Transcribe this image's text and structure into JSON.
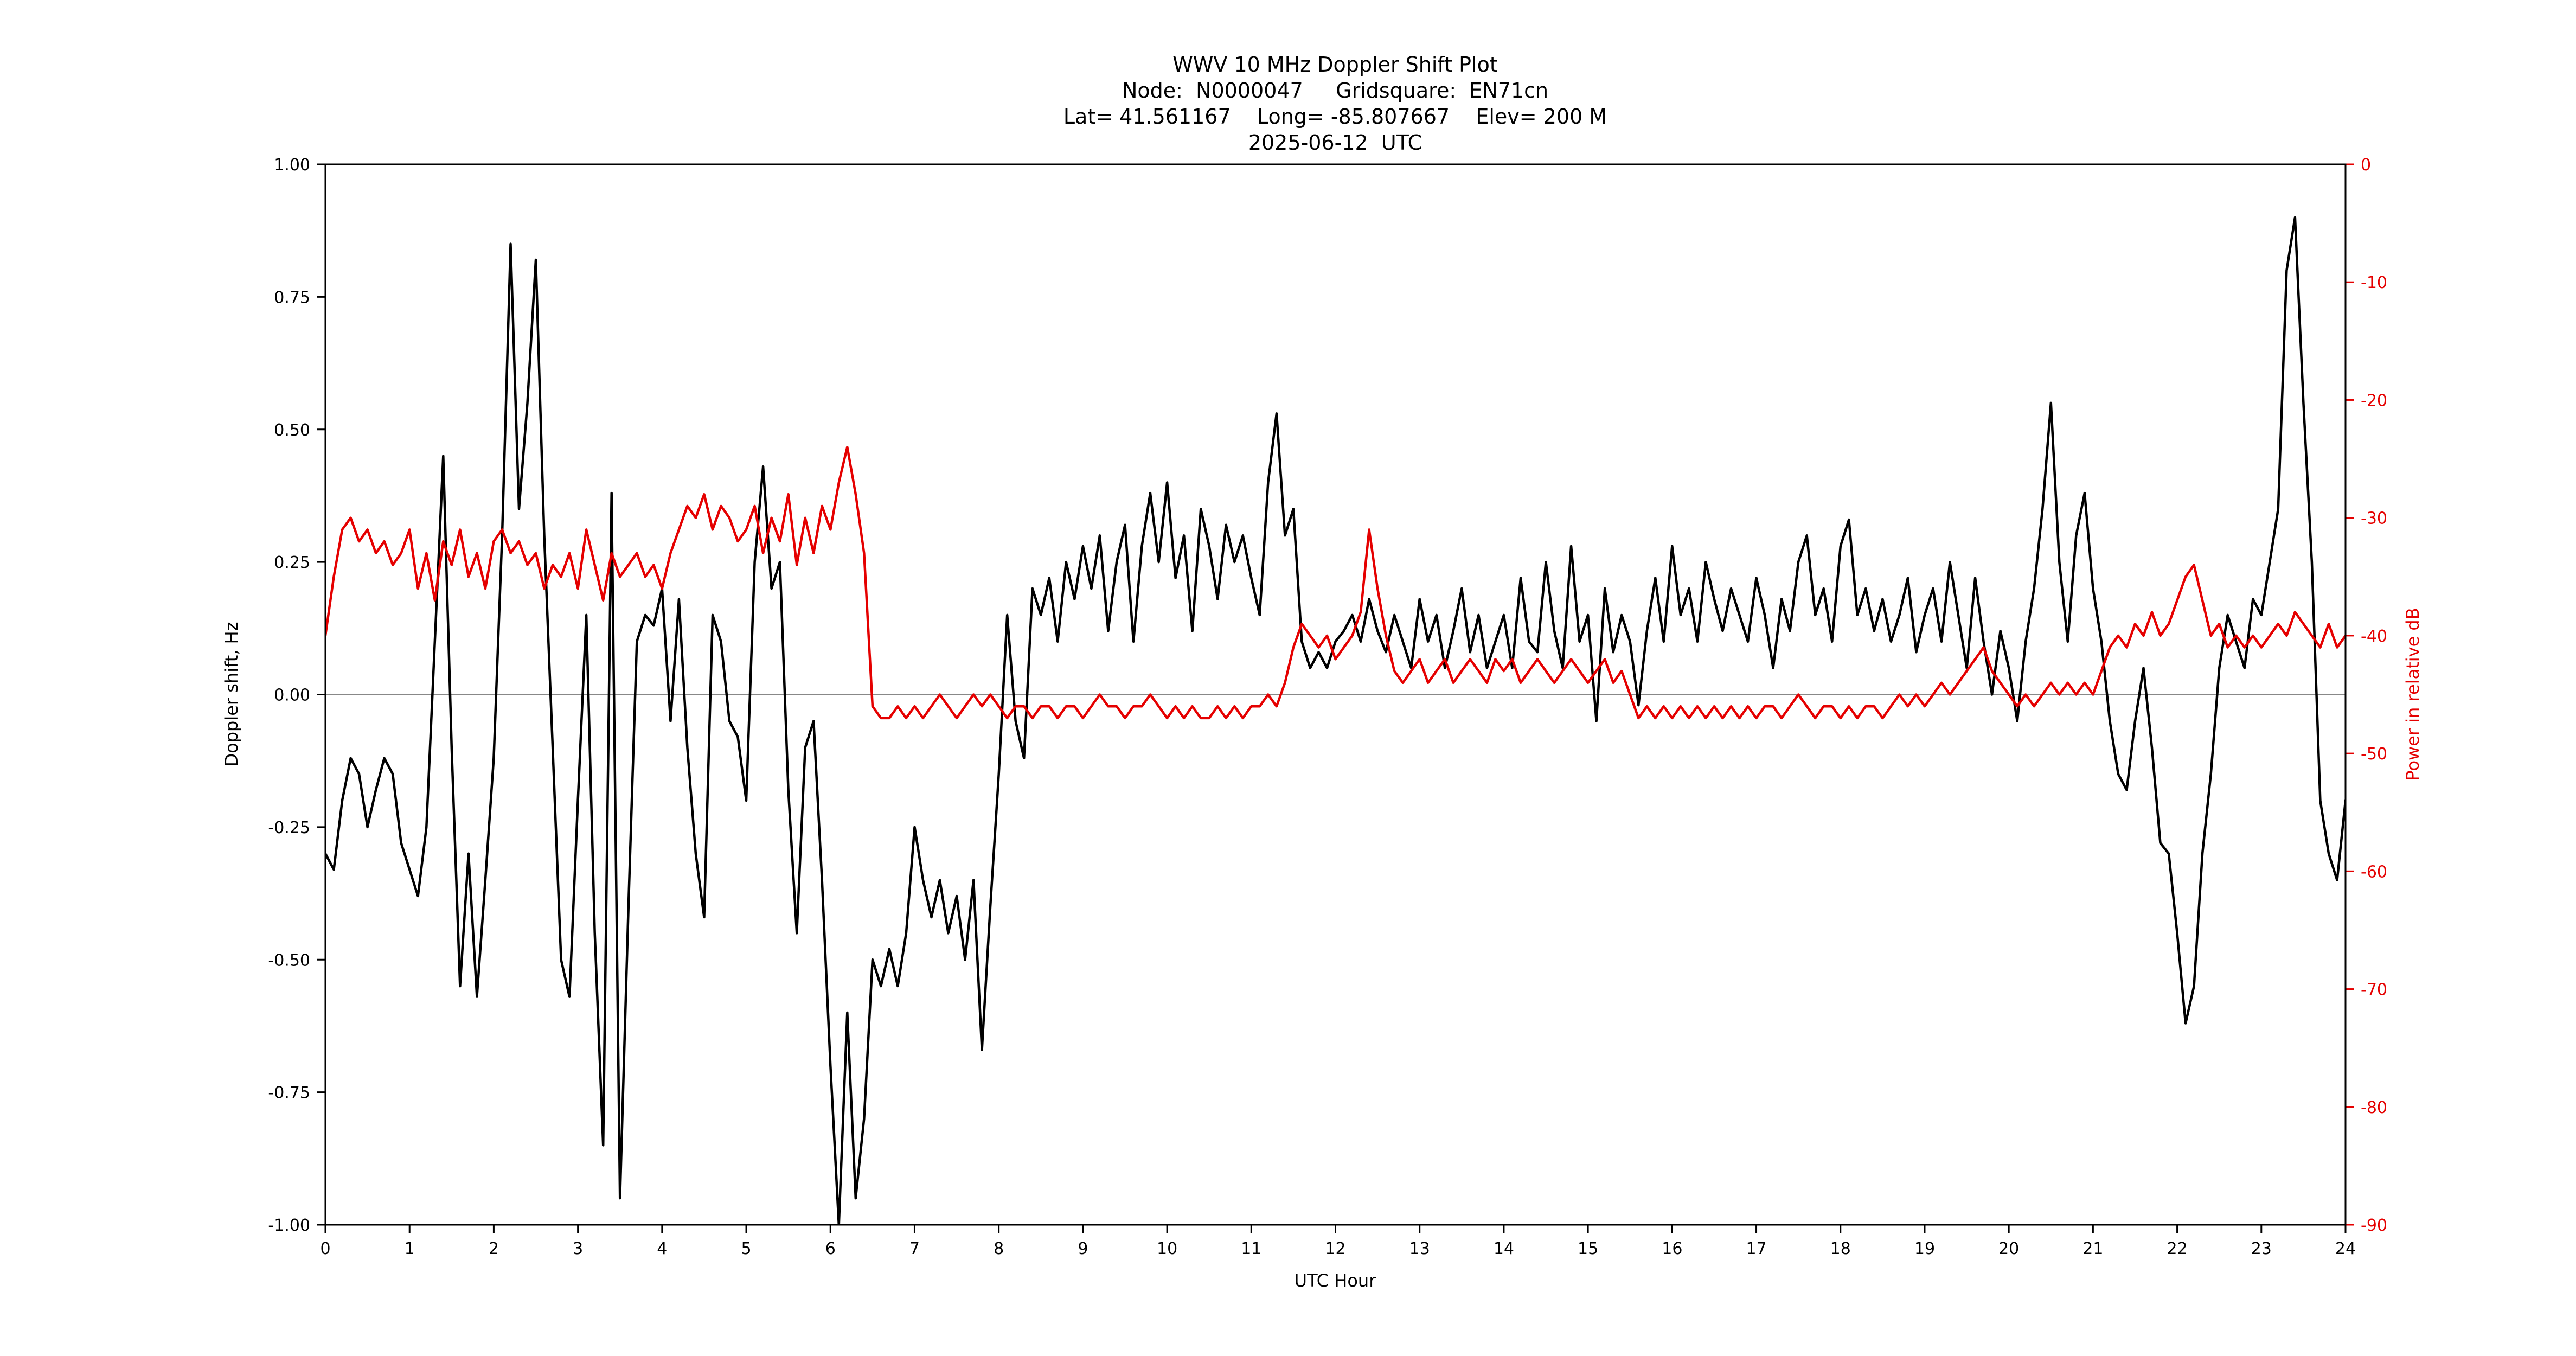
{
  "chart_data": {
    "type": "line",
    "title": "WWV 10 MHz Doppler Shift Plot",
    "subtitle_lines": [
      "Node:  N0000047     Gridsquare:  EN71cn",
      "Lat= 41.561167    Long= -85.807667    Elev= 200 M",
      "2025-06-12  UTC"
    ],
    "xlabel": "UTC Hour",
    "ylabel_left": "Doppler shift, Hz",
    "ylabel_right": "Power in relative dB",
    "xlim": [
      0,
      24
    ],
    "ylim_left": [
      -1.0,
      1.0
    ],
    "ylim_right": [
      -90,
      0
    ],
    "grid": false,
    "zero_line": 0.0,
    "colors": {
      "doppler": "#000000",
      "power": "#e50000",
      "zero_line": "#888888",
      "axes": "#000000"
    },
    "x_ticks": [
      0,
      1,
      2,
      3,
      4,
      5,
      6,
      7,
      8,
      9,
      10,
      11,
      12,
      13,
      14,
      15,
      16,
      17,
      18,
      19,
      20,
      21,
      22,
      23,
      24
    ],
    "x_tick_labels": [
      "0",
      "1",
      "2",
      "3",
      "4",
      "5",
      "6",
      "7",
      "8",
      "9",
      "10",
      "11",
      "12",
      "13",
      "14",
      "15",
      "16",
      "17",
      "18",
      "19",
      "20",
      "21",
      "22",
      "23",
      "24"
    ],
    "y_left_ticks": [
      -1.0,
      -0.75,
      -0.5,
      -0.25,
      0.0,
      0.25,
      0.5,
      0.75,
      1.0
    ],
    "y_left_tick_labels": [
      "-1.00",
      "-0.75",
      "-0.50",
      "-0.25",
      "0.00",
      "0.25",
      "0.50",
      "0.75",
      "1.00"
    ],
    "y_right_ticks": [
      0,
      -10,
      -20,
      -30,
      -40,
      -50,
      -60,
      -70,
      -80,
      -90
    ],
    "y_right_tick_labels": [
      "0",
      "-10",
      "-20",
      "-30",
      "-40",
      "-50",
      "-60",
      "-70",
      "-80",
      "-90"
    ],
    "series": [
      {
        "name": "doppler-shift",
        "axis": "left",
        "color": "#000000",
        "x_start": 0.0,
        "x_step": 0.1,
        "values": [
          -0.3,
          -0.33,
          -0.2,
          -0.12,
          -0.15,
          -0.25,
          -0.18,
          -0.12,
          -0.15,
          -0.28,
          -0.33,
          -0.38,
          -0.25,
          0.1,
          0.45,
          -0.1,
          -0.55,
          -0.3,
          -0.57,
          -0.35,
          -0.12,
          0.3,
          0.85,
          0.35,
          0.55,
          0.82,
          0.3,
          -0.1,
          -0.5,
          -0.57,
          -0.2,
          0.15,
          -0.45,
          -0.85,
          0.38,
          -0.95,
          -0.4,
          0.1,
          0.15,
          0.13,
          0.2,
          -0.05,
          0.18,
          -0.1,
          -0.3,
          -0.42,
          0.15,
          0.1,
          -0.05,
          -0.08,
          -0.2,
          0.25,
          0.43,
          0.2,
          0.25,
          -0.18,
          -0.45,
          -0.1,
          -0.05,
          -0.35,
          -0.7,
          -1.0,
          -0.6,
          -0.95,
          -0.8,
          -0.5,
          -0.55,
          -0.48,
          -0.55,
          -0.45,
          -0.25,
          -0.35,
          -0.42,
          -0.35,
          -0.45,
          -0.38,
          -0.5,
          -0.35,
          -0.67,
          -0.4,
          -0.15,
          0.15,
          -0.05,
          -0.12,
          0.2,
          0.15,
          0.22,
          0.1,
          0.25,
          0.18,
          0.28,
          0.2,
          0.3,
          0.12,
          0.25,
          0.32,
          0.1,
          0.28,
          0.38,
          0.25,
          0.4,
          0.22,
          0.3,
          0.12,
          0.35,
          0.28,
          0.18,
          0.32,
          0.25,
          0.3,
          0.22,
          0.15,
          0.4,
          0.53,
          0.3,
          0.35,
          0.1,
          0.05,
          0.08,
          0.05,
          0.1,
          0.12,
          0.15,
          0.1,
          0.18,
          0.12,
          0.08,
          0.15,
          0.1,
          0.05,
          0.18,
          0.1,
          0.15,
          0.05,
          0.12,
          0.2,
          0.08,
          0.15,
          0.05,
          0.1,
          0.15,
          0.05,
          0.22,
          0.1,
          0.08,
          0.25,
          0.12,
          0.05,
          0.28,
          0.1,
          0.15,
          -0.05,
          0.2,
          0.08,
          0.15,
          0.1,
          -0.02,
          0.12,
          0.22,
          0.1,
          0.28,
          0.15,
          0.2,
          0.1,
          0.25,
          0.18,
          0.12,
          0.2,
          0.15,
          0.1,
          0.22,
          0.15,
          0.05,
          0.18,
          0.12,
          0.25,
          0.3,
          0.15,
          0.2,
          0.1,
          0.28,
          0.33,
          0.15,
          0.2,
          0.12,
          0.18,
          0.1,
          0.15,
          0.22,
          0.08,
          0.15,
          0.2,
          0.1,
          0.25,
          0.15,
          0.05,
          0.22,
          0.1,
          0.0,
          0.12,
          0.05,
          -0.05,
          0.1,
          0.2,
          0.35,
          0.55,
          0.25,
          0.1,
          0.3,
          0.38,
          0.2,
          0.1,
          -0.05,
          -0.15,
          -0.18,
          -0.05,
          0.05,
          -0.1,
          -0.28,
          -0.3,
          -0.45,
          -0.62,
          -0.55,
          -0.3,
          -0.15,
          0.05,
          0.15,
          0.1,
          0.05,
          0.18,
          0.15,
          0.25,
          0.35,
          0.8,
          0.9,
          0.55,
          0.25,
          -0.2,
          -0.3,
          -0.35,
          -0.2
        ]
      },
      {
        "name": "power",
        "axis": "right",
        "color": "#e50000",
        "x_start": 0.0,
        "x_step": 0.1,
        "values": [
          -40,
          -35,
          -31,
          -30,
          -32,
          -31,
          -33,
          -32,
          -34,
          -33,
          -31,
          -36,
          -33,
          -37,
          -32,
          -34,
          -31,
          -35,
          -33,
          -36,
          -32,
          -31,
          -33,
          -32,
          -34,
          -33,
          -36,
          -34,
          -35,
          -33,
          -36,
          -31,
          -34,
          -37,
          -33,
          -35,
          -34,
          -33,
          -35,
          -34,
          -36,
          -33,
          -31,
          -29,
          -30,
          -28,
          -31,
          -29,
          -30,
          -32,
          -31,
          -29,
          -33,
          -30,
          -32,
          -28,
          -34,
          -30,
          -33,
          -29,
          -31,
          -27,
          -24,
          -28,
          -33,
          -46,
          -47,
          -47,
          -46,
          -47,
          -46,
          -47,
          -46,
          -45,
          -46,
          -47,
          -46,
          -45,
          -46,
          -45,
          -46,
          -47,
          -46,
          -46,
          -47,
          -46,
          -46,
          -47,
          -46,
          -46,
          -47,
          -46,
          -45,
          -46,
          -46,
          -47,
          -46,
          -46,
          -45,
          -46,
          -47,
          -46,
          -47,
          -46,
          -47,
          -47,
          -46,
          -47,
          -46,
          -47,
          -46,
          -46,
          -45,
          -46,
          -44,
          -41,
          -39,
          -40,
          -41,
          -40,
          -42,
          -41,
          -40,
          -38,
          -31,
          -36,
          -40,
          -43,
          -44,
          -43,
          -42,
          -44,
          -43,
          -42,
          -44,
          -43,
          -42,
          -43,
          -44,
          -42,
          -43,
          -42,
          -44,
          -43,
          -42,
          -43,
          -44,
          -43,
          -42,
          -43,
          -44,
          -43,
          -42,
          -44,
          -43,
          -45,
          -47,
          -46,
          -47,
          -46,
          -47,
          -46,
          -47,
          -46,
          -47,
          -46,
          -47,
          -46,
          -47,
          -46,
          -47,
          -46,
          -46,
          -47,
          -46,
          -45,
          -46,
          -47,
          -46,
          -46,
          -47,
          -46,
          -47,
          -46,
          -46,
          -47,
          -46,
          -45,
          -46,
          -45,
          -46,
          -45,
          -44,
          -45,
          -44,
          -43,
          -42,
          -41,
          -43,
          -44,
          -45,
          -46,
          -45,
          -46,
          -45,
          -44,
          -45,
          -44,
          -45,
          -44,
          -45,
          -43,
          -41,
          -40,
          -41,
          -39,
          -40,
          -38,
          -40,
          -39,
          -37,
          -35,
          -34,
          -37,
          -40,
          -39,
          -41,
          -40,
          -41,
          -40,
          -41,
          -40,
          -39,
          -40,
          -38,
          -39,
          -40,
          -41,
          -39,
          -41,
          -40
        ]
      }
    ]
  }
}
